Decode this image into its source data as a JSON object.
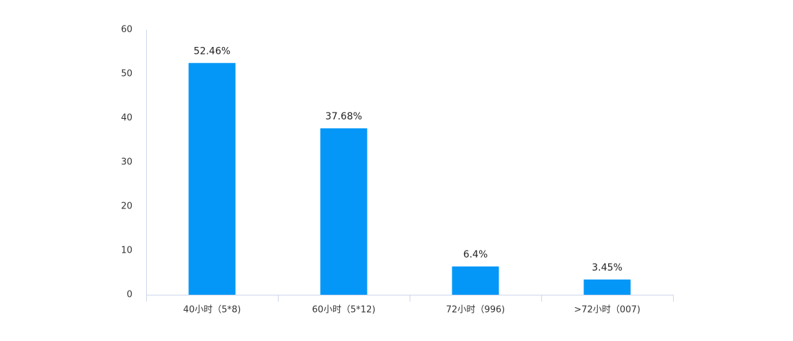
{
  "chart_data": {
    "type": "bar",
    "categories": [
      "40小时（5*8)",
      "60小时（5*12)",
      "72小时（996)",
      ">72小时（007)"
    ],
    "values": [
      52.46,
      37.68,
      6.4,
      3.45
    ],
    "value_labels": [
      "52.46%",
      "37.68%",
      "6.4%",
      "3.45%"
    ],
    "color": "#0597f7",
    "ylim": [
      0,
      60
    ],
    "yticks": [
      0,
      10,
      20,
      30,
      40,
      50,
      60
    ],
    "grid": false
  }
}
